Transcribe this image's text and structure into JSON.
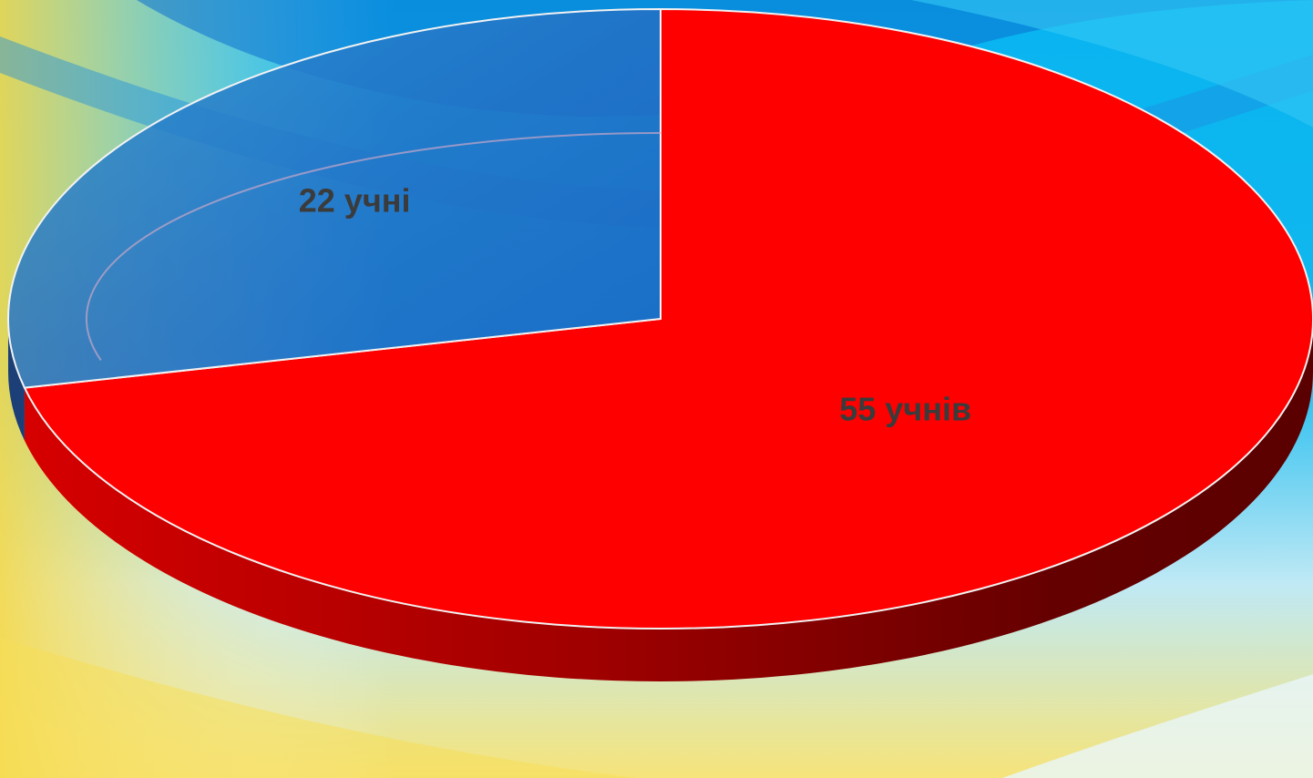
{
  "chart_data": {
    "type": "pie",
    "title": "",
    "three_d": true,
    "start_angle_deg": 90,
    "direction": "clockwise",
    "slices": [
      {
        "label": "55 учнів",
        "value": 55,
        "color": "#ff0000",
        "side_color_light": "#d60000",
        "side_color_dark": "#5a0000"
      },
      {
        "label": "22 учні",
        "value": 22,
        "color": "#3a6fbf",
        "side_color_light": "#2f5ea8",
        "side_color_dark": "#1c3f78"
      }
    ],
    "legend": "none",
    "background": "blue-yellow gradient"
  }
}
